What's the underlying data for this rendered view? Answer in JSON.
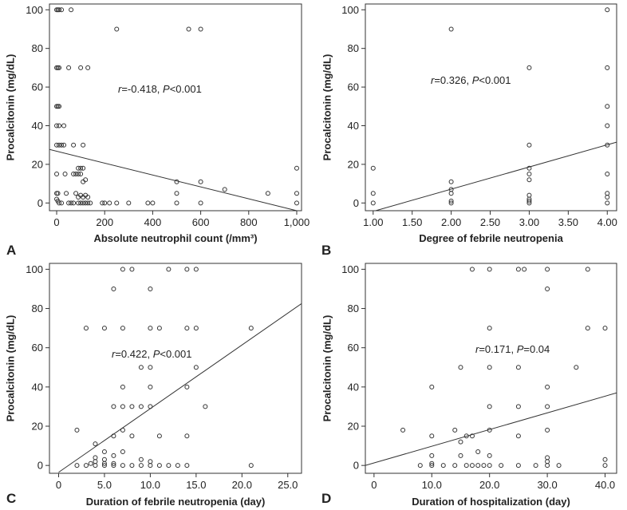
{
  "chart_data": [
    {
      "panel_label": "A",
      "type": "scatter",
      "xlabel": "Absolute neutrophil count (/mm³)",
      "ylabel": "Procalcitonin (mg/dL)",
      "xlim": [
        -30,
        1020
      ],
      "ylim": [
        -4,
        103
      ],
      "xticks": [
        0,
        200,
        400,
        600,
        800,
        1000
      ],
      "xtick_labels": [
        "0",
        "200",
        "400",
        "600",
        "800",
        "1,000"
      ],
      "yticks": [
        0,
        20,
        40,
        60,
        80,
        100
      ],
      "ytick_labels": [
        "0",
        "20",
        "40",
        "60",
        "80",
        "100"
      ],
      "annotation": {
        "r_symbol": "r",
        "r_text": "=-0.418, ",
        "p_symbol": "P",
        "p_text": "<0.001"
      },
      "fit_line": {
        "x": [
          -30,
          1000
        ],
        "y": [
          27.7,
          -4
        ]
      },
      "points": [
        [
          0,
          100
        ],
        [
          5,
          100
        ],
        [
          10,
          100
        ],
        [
          20,
          100
        ],
        [
          60,
          100
        ],
        [
          0,
          70
        ],
        [
          5,
          70
        ],
        [
          10,
          70
        ],
        [
          50,
          70
        ],
        [
          100,
          70
        ],
        [
          130,
          70
        ],
        [
          250,
          90
        ],
        [
          550,
          90
        ],
        [
          600,
          90
        ],
        [
          0,
          50
        ],
        [
          5,
          50
        ],
        [
          10,
          50
        ],
        [
          0,
          40
        ],
        [
          10,
          40
        ],
        [
          30,
          40
        ],
        [
          0,
          30
        ],
        [
          10,
          30
        ],
        [
          20,
          30
        ],
        [
          30,
          30
        ],
        [
          70,
          30
        ],
        [
          110,
          30
        ],
        [
          90,
          18
        ],
        [
          100,
          18
        ],
        [
          110,
          18
        ],
        [
          1000,
          18
        ],
        [
          0,
          15
        ],
        [
          35,
          15
        ],
        [
          70,
          15
        ],
        [
          80,
          15
        ],
        [
          100,
          15
        ],
        [
          90,
          15
        ],
        [
          120,
          12
        ],
        [
          110,
          11
        ],
        [
          500,
          11
        ],
        [
          600,
          11
        ],
        [
          0,
          5
        ],
        [
          5,
          5
        ],
        [
          40,
          5
        ],
        [
          80,
          5
        ],
        [
          90,
          3
        ],
        [
          100,
          4
        ],
        [
          110,
          3
        ],
        [
          130,
          3
        ],
        [
          120,
          4
        ],
        [
          500,
          5
        ],
        [
          700,
          7
        ],
        [
          880,
          5
        ],
        [
          1000,
          5
        ],
        [
          0,
          2
        ],
        [
          5,
          1
        ],
        [
          10,
          0
        ],
        [
          20,
          0
        ],
        [
          50,
          0
        ],
        [
          60,
          0
        ],
        [
          70,
          0
        ],
        [
          90,
          0
        ],
        [
          100,
          0
        ],
        [
          110,
          0
        ],
        [
          120,
          0
        ],
        [
          130,
          0
        ],
        [
          140,
          0
        ],
        [
          190,
          0
        ],
        [
          200,
          0
        ],
        [
          220,
          0
        ],
        [
          250,
          0
        ],
        [
          300,
          0
        ],
        [
          380,
          0
        ],
        [
          400,
          0
        ],
        [
          500,
          0
        ],
        [
          600,
          0
        ],
        [
          1000,
          0
        ]
      ]
    },
    {
      "panel_label": "B",
      "type": "scatter",
      "xlabel": "Degree of febrile neutropenia",
      "ylabel": "Procalcitonin (mg/dL)",
      "xlim": [
        0.9,
        4.12
      ],
      "ylim": [
        -4,
        103
      ],
      "xticks": [
        1.0,
        1.5,
        2.0,
        2.5,
        3.0,
        3.5,
        4.0
      ],
      "xtick_labels": [
        "1.00",
        "1.50",
        "2.00",
        "2.50",
        "3.00",
        "3.50",
        "4.00"
      ],
      "yticks": [
        0,
        20,
        40,
        60,
        80,
        100
      ],
      "ytick_labels": [
        "0",
        "20",
        "40",
        "60",
        "80",
        "100"
      ],
      "annotation": {
        "r_symbol": "r",
        "r_text": "=0.326, ",
        "p_symbol": "P",
        "p_text": "<0.001"
      },
      "fit_line": {
        "x": [
          0.9,
          4.12
        ],
        "y": [
          -5.5,
          31.5
        ]
      },
      "points": [
        [
          1,
          18
        ],
        [
          1,
          5
        ],
        [
          1,
          0
        ],
        [
          2,
          90
        ],
        [
          2,
          11
        ],
        [
          2,
          7
        ],
        [
          2,
          5
        ],
        [
          2,
          1
        ],
        [
          2,
          0
        ],
        [
          3,
          70
        ],
        [
          3,
          30
        ],
        [
          3,
          18
        ],
        [
          3,
          15
        ],
        [
          3,
          12
        ],
        [
          3,
          4
        ],
        [
          3,
          2
        ],
        [
          3,
          1
        ],
        [
          3,
          0
        ],
        [
          4,
          100
        ],
        [
          4,
          70
        ],
        [
          4,
          50
        ],
        [
          4,
          40
        ],
        [
          4,
          30
        ],
        [
          4,
          15
        ],
        [
          4,
          5
        ],
        [
          4,
          3
        ],
        [
          4,
          0
        ]
      ]
    },
    {
      "panel_label": "C",
      "type": "scatter",
      "xlabel": "Duration of febrile neutropenia (day)",
      "ylabel": "Procalcitonin (mg/dL)",
      "xlim": [
        -1,
        26.5
      ],
      "ylim": [
        -4,
        103
      ],
      "xticks": [
        0,
        5,
        10,
        15,
        20,
        25
      ],
      "xtick_labels": [
        "0",
        "5.0",
        "10.0",
        "15.0",
        "20.0",
        "25.0"
      ],
      "yticks": [
        0,
        20,
        40,
        60,
        80,
        100
      ],
      "ytick_labels": [
        "0",
        "20",
        "40",
        "60",
        "80",
        "100"
      ],
      "annotation": {
        "r_symbol": "r",
        "r_text": "=0.422, ",
        "p_symbol": "P",
        "p_text": "<0.001"
      },
      "fit_line": {
        "x": [
          0,
          26.5
        ],
        "y": [
          -3.5,
          82.5
        ]
      },
      "points": [
        [
          7,
          100
        ],
        [
          8,
          100
        ],
        [
          12,
          100
        ],
        [
          14,
          100
        ],
        [
          15,
          100
        ],
        [
          6,
          90
        ],
        [
          10,
          90
        ],
        [
          3,
          70
        ],
        [
          5,
          70
        ],
        [
          7,
          70
        ],
        [
          10,
          70
        ],
        [
          11,
          70
        ],
        [
          14,
          70
        ],
        [
          15,
          70
        ],
        [
          21,
          70
        ],
        [
          9,
          50
        ],
        [
          10,
          50
        ],
        [
          15,
          50
        ],
        [
          7,
          40
        ],
        [
          10,
          40
        ],
        [
          14,
          40
        ],
        [
          6,
          30
        ],
        [
          7,
          30
        ],
        [
          8,
          30
        ],
        [
          9,
          30
        ],
        [
          10,
          30
        ],
        [
          16,
          30
        ],
        [
          2,
          18
        ],
        [
          7,
          18
        ],
        [
          6,
          15
        ],
        [
          8,
          15
        ],
        [
          11,
          15
        ],
        [
          14,
          15
        ],
        [
          4,
          11
        ],
        [
          5,
          7
        ],
        [
          6,
          5
        ],
        [
          7,
          7
        ],
        [
          9,
          3
        ],
        [
          10,
          2
        ],
        [
          4,
          4
        ],
        [
          5,
          3
        ],
        [
          2,
          0
        ],
        [
          3,
          0
        ],
        [
          3.5,
          1
        ],
        [
          4,
          0
        ],
        [
          4,
          2
        ],
        [
          5,
          0
        ],
        [
          5,
          1
        ],
        [
          6,
          0
        ],
        [
          6,
          1
        ],
        [
          7,
          0
        ],
        [
          8,
          0
        ],
        [
          9,
          0
        ],
        [
          10,
          0
        ],
        [
          11,
          0
        ],
        [
          12,
          0
        ],
        [
          13,
          0
        ],
        [
          14,
          0
        ],
        [
          21,
          0
        ]
      ]
    },
    {
      "panel_label": "D",
      "type": "scatter",
      "xlabel": "Duration of hospitalization (day)",
      "ylabel": "Procalcitonin (mg/dL)",
      "xlim": [
        -1.5,
        42
      ],
      "ylim": [
        -4,
        103
      ],
      "xticks": [
        0,
        10,
        20,
        30,
        40
      ],
      "xtick_labels": [
        "0",
        "10.0",
        "20.0",
        "30.0",
        "40.0"
      ],
      "yticks": [
        0,
        20,
        40,
        60,
        80,
        100
      ],
      "ytick_labels": [
        "0",
        "20",
        "40",
        "60",
        "80",
        "100"
      ],
      "annotation": {
        "r_symbol": "r",
        "r_text": "=0.171, ",
        "p_symbol": "P",
        "p_text": "=0.04"
      },
      "fit_line": {
        "x": [
          -1.5,
          42
        ],
        "y": [
          0,
          37
        ]
      },
      "points": [
        [
          17,
          100
        ],
        [
          20,
          100
        ],
        [
          25,
          100
        ],
        [
          26,
          100
        ],
        [
          30,
          100
        ],
        [
          37,
          100
        ],
        [
          30,
          90
        ],
        [
          20,
          70
        ],
        [
          37,
          70
        ],
        [
          40,
          70
        ],
        [
          15,
          50
        ],
        [
          20,
          50
        ],
        [
          25,
          50
        ],
        [
          35,
          50
        ],
        [
          10,
          40
        ],
        [
          30,
          40
        ],
        [
          20,
          30
        ],
        [
          25,
          30
        ],
        [
          30,
          30
        ],
        [
          5,
          18
        ],
        [
          14,
          18
        ],
        [
          16,
          15
        ],
        [
          17,
          15
        ],
        [
          20,
          18
        ],
        [
          30,
          18
        ],
        [
          10,
          15
        ],
        [
          15,
          12
        ],
        [
          25,
          15
        ],
        [
          18,
          7
        ],
        [
          10,
          5
        ],
        [
          15,
          5
        ],
        [
          20,
          5
        ],
        [
          30,
          4
        ],
        [
          30,
          2
        ],
        [
          40,
          3
        ],
        [
          8,
          0
        ],
        [
          10,
          0
        ],
        [
          10,
          1
        ],
        [
          12,
          0
        ],
        [
          14,
          0
        ],
        [
          16,
          0
        ],
        [
          17,
          0
        ],
        [
          18,
          0
        ],
        [
          19,
          0
        ],
        [
          20,
          0
        ],
        [
          22,
          0
        ],
        [
          25,
          0
        ],
        [
          28,
          0
        ],
        [
          30,
          0
        ],
        [
          32,
          0
        ],
        [
          40,
          0
        ]
      ]
    }
  ]
}
